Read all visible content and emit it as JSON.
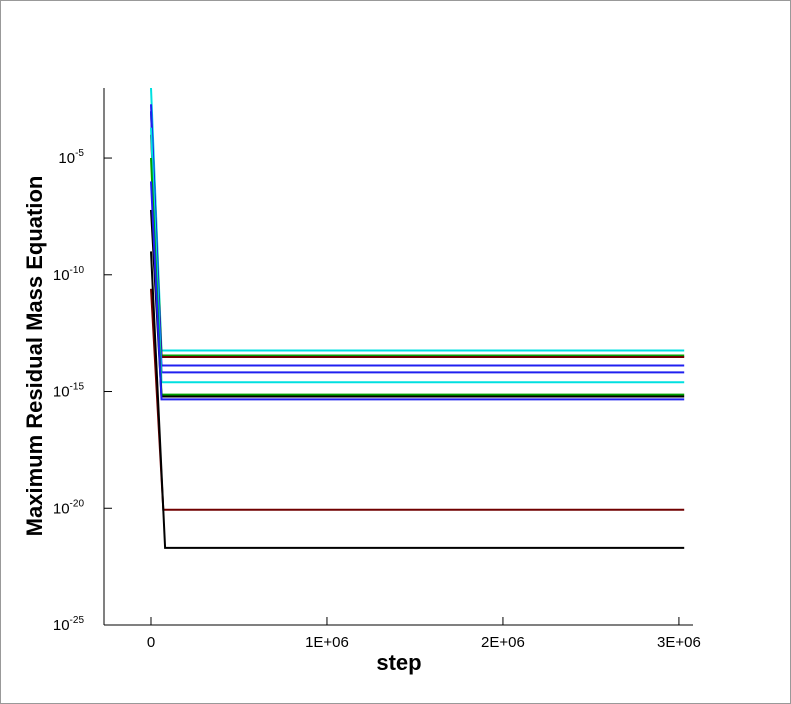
{
  "chart_data": {
    "type": "line",
    "xlabel": "step",
    "ylabel": "Maximum Residual Mass Equation",
    "log_y": true,
    "xlim": [
      -267000,
      3080000
    ],
    "xticks": [
      0,
      {
        "value": 1000000,
        "label": "1E+06"
      },
      {
        "value": 2000000,
        "label": "2E+06"
      },
      {
        "value": 3000000,
        "label": "3E+06"
      }
    ],
    "ylim": [
      1e-25,
      0.01
    ],
    "yticks": [
      {
        "value": 1e-25,
        "label": "10",
        "exponent": "-25"
      },
      {
        "value": 1e-20,
        "label": "10",
        "exponent": "-20"
      },
      {
        "value": 1e-15,
        "label": "10",
        "exponent": "-15"
      },
      {
        "value": 1e-10,
        "label": "10",
        "exponent": "-10"
      },
      {
        "value": 1e-05,
        "label": "10",
        "exponent": "-5"
      }
    ],
    "series": [
      {
        "color": "#00e0e0",
        "x": [
          0,
          60000,
          3030000
        ],
        "values": [
          0.01,
          5.7e-14,
          5.7e-14
        ]
      },
      {
        "color": "#00a000",
        "x": [
          0,
          60000,
          3030000
        ],
        "values": [
          0.001,
          3.5e-14,
          3.5e-14
        ]
      },
      {
        "color": "#700000",
        "x": [
          0,
          60000,
          3030000
        ],
        "values": [
          0.0001,
          3e-14,
          3e-14
        ]
      },
      {
        "color": "#2020f0",
        "x": [
          0,
          60000,
          3030000
        ],
        "values": [
          0.002,
          1.3e-14,
          1.3e-14
        ]
      },
      {
        "color": "#2020f0",
        "x": [
          0,
          60000,
          3030000
        ],
        "values": [
          0.001,
          6.6e-15,
          6.6e-15
        ]
      },
      {
        "color": "#00e0e0",
        "x": [
          0,
          60000,
          3030000
        ],
        "values": [
          0.0002,
          2.5e-15,
          2.5e-15
        ]
      },
      {
        "color": "#00a000",
        "x": [
          0,
          60000,
          3030000
        ],
        "values": [
          1e-05,
          7.4e-16,
          7.4e-16
        ]
      },
      {
        "color": "#000000",
        "x": [
          0,
          60000,
          3030000
        ],
        "values": [
          6e-08,
          6.1e-16,
          6.1e-16
        ]
      },
      {
        "color": "#2020f0",
        "x": [
          0,
          60000,
          3030000
        ],
        "values": [
          1e-06,
          4.6e-16,
          4.6e-16
        ]
      },
      {
        "color": "#700000",
        "x": [
          0,
          70000,
          3030000
        ],
        "values": [
          2.5e-11,
          8.7e-21,
          8.7e-21
        ]
      },
      {
        "color": "#000000",
        "x": [
          0,
          80000,
          3030000
        ],
        "values": [
          1e-09,
          2e-22,
          2e-22
        ]
      }
    ]
  }
}
